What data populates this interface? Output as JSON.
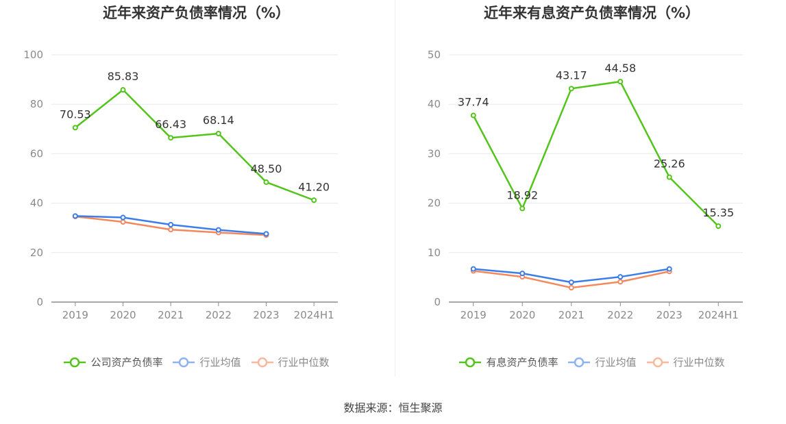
{
  "source_text": "数据来源：恒生聚源",
  "chart_data": [
    {
      "type": "line",
      "title": "近年来资产负债率情况（%）",
      "categories": [
        "2019",
        "2020",
        "2021",
        "2022",
        "2023",
        "2024H1"
      ],
      "ylim": [
        0,
        100
      ],
      "yticks": [
        0,
        20,
        40,
        60,
        80,
        100
      ],
      "grid": true,
      "legend_position": "bottom",
      "series": [
        {
          "name": "公司资产负债率",
          "color": "#52c41a",
          "values": [
            70.53,
            85.83,
            66.43,
            68.14,
            48.5,
            41.2
          ],
          "labels": [
            "70.53",
            "85.83",
            "66.43",
            "68.14",
            "48.50",
            "41.20"
          ]
        },
        {
          "name": "行业均值",
          "color": "#3b7de9",
          "values": [
            34.8,
            34.2,
            31.3,
            29.2,
            27.6,
            null
          ]
        },
        {
          "name": "行业中位数",
          "color": "#f5875c",
          "values": [
            34.6,
            32.4,
            29.3,
            28.1,
            27.1,
            null
          ]
        }
      ]
    },
    {
      "type": "line",
      "title": "近年来有息资产负债率情况（%）",
      "categories": [
        "2019",
        "2020",
        "2021",
        "2022",
        "2023",
        "2024H1"
      ],
      "ylim": [
        0,
        50
      ],
      "yticks": [
        0,
        10,
        20,
        30,
        40,
        50
      ],
      "grid": true,
      "legend_position": "bottom",
      "series": [
        {
          "name": "有息资产负债率",
          "color": "#52c41a",
          "values": [
            37.74,
            18.92,
            43.17,
            44.58,
            25.26,
            15.35
          ],
          "labels": [
            "37.74",
            "18.92",
            "43.17",
            "44.58",
            "25.26",
            "15.35"
          ]
        },
        {
          "name": "行业均值",
          "color": "#3b7de9",
          "values": [
            6.7,
            5.8,
            4.0,
            5.1,
            6.7,
            null
          ]
        },
        {
          "name": "行业中位数",
          "color": "#f5875c",
          "values": [
            6.3,
            5.1,
            2.9,
            4.1,
            6.2,
            null
          ]
        }
      ]
    }
  ]
}
